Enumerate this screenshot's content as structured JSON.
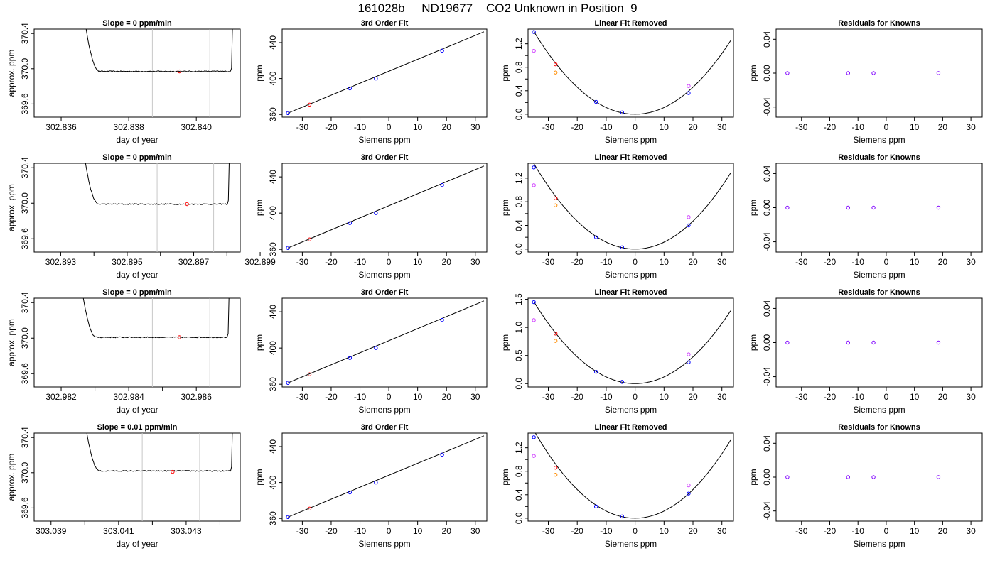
{
  "page_title": "161028b     ND19677    CO2 Unknown in Position  9",
  "colors": {
    "line": "#000000",
    "window": "#c8c8c8",
    "known": "#0000ff",
    "sample": "#ff0000",
    "ref_a": "#ff8c00",
    "ref_b": "#d040ff",
    "resid": "#7f00ff"
  },
  "chart_data": [
    {
      "type": "line",
      "row": 0,
      "panel": "trace",
      "title": "Slope =  0  ppm/min",
      "xlabel": "day of year",
      "ylabel": "approx. ppm",
      "xlim": [
        302.8352,
        302.8413
      ],
      "ylim": [
        369.45,
        370.45
      ],
      "xticks": [
        302.836,
        302.838,
        302.84
      ],
      "xtick_labels": [
        "302.836",
        "302.838",
        "302.840"
      ],
      "yticks": [
        369.6,
        370.0,
        370.4
      ],
      "ytick_labels": [
        "369.6",
        "370.0",
        "370.4"
      ],
      "trace": {
        "start": 302.8365,
        "end": 302.8411,
        "level": 369.97,
        "noise": 0.006
      },
      "window": [
        302.8387,
        302.8404
      ],
      "sample_point": {
        "x": 302.8395,
        "y": 369.97
      }
    },
    {
      "type": "line",
      "row": 0,
      "panel": "fit",
      "title": "3rd Order Fit",
      "xlabel": "Siemens ppm",
      "ylabel": "ppm",
      "xlim": [
        -37,
        34
      ],
      "ylim": [
        357,
        455
      ],
      "xticks": [
        -30,
        -20,
        -10,
        0,
        10,
        20,
        30
      ],
      "yticks": [
        360,
        400,
        440
      ],
      "fit_line": [
        [
          -35,
          361.5
        ],
        [
          33,
          452
        ]
      ],
      "known_points": [
        [
          -35,
          361.5
        ],
        [
          -13.5,
          389
        ],
        [
          -4.5,
          400
        ],
        [
          18.5,
          431
        ]
      ],
      "sample_points": [
        [
          -27.5,
          371
        ]
      ]
    },
    {
      "type": "line",
      "row": 0,
      "panel": "linear_removed",
      "title": "Linear Fit Removed",
      "xlabel": "Siemens ppm",
      "ylabel": "ppm",
      "xlim": [
        -37,
        34
      ],
      "ylim": [
        -0.05,
        1.45
      ],
      "xticks": [
        -30,
        -20,
        -10,
        0,
        10,
        20,
        30
      ],
      "yticks": [
        0.0,
        0.2,
        0.4,
        0.6,
        0.8,
        1.0,
        1.2
      ],
      "yticks_labeled": [
        0.0,
        0.4,
        0.8,
        1.2
      ],
      "curve": {
        "center": 0,
        "coef": 0.00115
      },
      "known_points": [
        [
          -35,
          1.4
        ],
        [
          -13.5,
          0.21
        ],
        [
          -4.5,
          0.03
        ],
        [
          18.5,
          0.36
        ]
      ],
      "sample_points": [
        [
          -27.5,
          0.85
        ]
      ],
      "ref_a_points": [
        [
          -27.5,
          0.71
        ]
      ],
      "ref_b_points": [
        [
          -35,
          1.08
        ],
        [
          18.5,
          0.48
        ]
      ]
    },
    {
      "type": "scatter",
      "row": 0,
      "panel": "resid",
      "title": "Residuals for Knowns",
      "xlabel": "Siemens ppm",
      "ylabel": "ppm",
      "xlim": [
        -39,
        34
      ],
      "ylim": [
        -0.052,
        0.052
      ],
      "xticks": [
        -30,
        -20,
        -10,
        0,
        10,
        20,
        30
      ],
      "yticks": [
        -0.04,
        0.0,
        0.04
      ],
      "ytick_labels": [
        "-0.04",
        "0.00",
        "0.04"
      ],
      "points": [
        [
          -35,
          0
        ],
        [
          -13.5,
          0
        ],
        [
          -4.5,
          0
        ],
        [
          18.5,
          0
        ]
      ]
    },
    {
      "type": "line",
      "row": 1,
      "panel": "trace",
      "title": "Slope =  0  ppm/min",
      "xlabel": "day of year",
      "ylabel": "approx. ppm",
      "xlim": [
        302.8922,
        302.8984
      ],
      "ylim": [
        369.45,
        370.45
      ],
      "xticks": [
        302.893,
        302.894,
        302.895,
        302.896,
        302.897,
        302.898,
        302.899
      ],
      "xtick_labels": [
        "302.893",
        "",
        "302.895",
        "",
        "302.897",
        "",
        "302.899"
      ],
      "yticks": [
        369.6,
        370.0,
        370.4
      ],
      "ytick_labels": [
        "369.6",
        "370.0",
        "370.4"
      ],
      "trace": {
        "start": 302.8935,
        "end": 302.8981,
        "level": 369.99,
        "noise": 0.006
      },
      "window": [
        302.8959,
        302.8976
      ],
      "sample_point": {
        "x": 302.8968,
        "y": 369.99
      }
    },
    {
      "type": "line",
      "row": 1,
      "panel": "fit",
      "title": "3rd Order Fit",
      "xlabel": "Siemens ppm",
      "ylabel": "ppm",
      "xlim": [
        -37,
        34
      ],
      "ylim": [
        357,
        455
      ],
      "xticks": [
        -30,
        -20,
        -10,
        0,
        10,
        20,
        30
      ],
      "yticks": [
        360,
        400,
        440
      ],
      "fit_line": [
        [
          -35,
          361.5
        ],
        [
          33,
          452
        ]
      ],
      "known_points": [
        [
          -35,
          361.5
        ],
        [
          -13.5,
          389
        ],
        [
          -4.5,
          400
        ],
        [
          18.5,
          431
        ]
      ],
      "sample_points": [
        [
          -27.5,
          371
        ]
      ]
    },
    {
      "type": "line",
      "row": 1,
      "panel": "linear_removed",
      "title": "Linear Fit Removed",
      "xlabel": "Siemens ppm",
      "ylabel": "ppm",
      "xlim": [
        -37,
        34
      ],
      "ylim": [
        -0.05,
        1.45
      ],
      "xticks": [
        -30,
        -20,
        -10,
        0,
        10,
        20,
        30
      ],
      "yticks": [
        0.0,
        0.2,
        0.4,
        0.6,
        0.8,
        1.0,
        1.2
      ],
      "yticks_labeled": [
        0.0,
        0.4,
        0.8,
        1.2
      ],
      "curve": {
        "center": 0,
        "coef": 0.00118
      },
      "known_points": [
        [
          -35,
          1.38
        ],
        [
          -13.5,
          0.2
        ],
        [
          -4.5,
          0.03
        ],
        [
          18.5,
          0.4
        ]
      ],
      "sample_points": [
        [
          -27.5,
          0.86
        ]
      ],
      "ref_a_points": [
        [
          -27.5,
          0.74
        ]
      ],
      "ref_b_points": [
        [
          -35,
          1.08
        ],
        [
          18.5,
          0.54
        ]
      ]
    },
    {
      "type": "scatter",
      "row": 1,
      "panel": "resid",
      "title": "Residuals for Knowns",
      "xlabel": "Siemens ppm",
      "ylabel": "ppm",
      "xlim": [
        -39,
        34
      ],
      "ylim": [
        -0.052,
        0.052
      ],
      "xticks": [
        -30,
        -20,
        -10,
        0,
        10,
        20,
        30
      ],
      "yticks": [
        -0.04,
        0.0,
        0.04
      ],
      "ytick_labels": [
        "-0.04",
        "0.00",
        "0.04"
      ],
      "points": [
        [
          -35,
          0
        ],
        [
          -13.5,
          0
        ],
        [
          -4.5,
          0
        ],
        [
          18.5,
          0
        ]
      ]
    },
    {
      "type": "line",
      "row": 2,
      "panel": "trace",
      "title": "Slope =  0  ppm/min",
      "xlabel": "day of year",
      "ylabel": "approx. ppm",
      "xlim": [
        302.9812,
        302.9873
      ],
      "ylim": [
        369.45,
        370.45
      ],
      "xticks": [
        302.982,
        302.983,
        302.984,
        302.985,
        302.986
      ],
      "xtick_labels": [
        "302.982",
        "",
        "302.984",
        "",
        "302.986"
      ],
      "yticks": [
        369.6,
        370.0,
        370.4
      ],
      "ytick_labels": [
        "369.6",
        "370.0",
        "370.4"
      ],
      "trace": {
        "start": 302.9824,
        "end": 302.987,
        "level": 370.01,
        "noise": 0.006
      },
      "window": [
        302.9847,
        302.9864
      ],
      "sample_point": {
        "x": 302.9855,
        "y": 370.01
      }
    },
    {
      "type": "line",
      "row": 2,
      "panel": "fit",
      "title": "3rd Order Fit",
      "xlabel": "Siemens ppm",
      "ylabel": "ppm",
      "xlim": [
        -37,
        34
      ],
      "ylim": [
        357,
        455
      ],
      "xticks": [
        -30,
        -20,
        -10,
        0,
        10,
        20,
        30
      ],
      "yticks": [
        360,
        400,
        440
      ],
      "fit_line": [
        [
          -35,
          361.5
        ],
        [
          33,
          452
        ]
      ],
      "known_points": [
        [
          -35,
          361.5
        ],
        [
          -13.5,
          389
        ],
        [
          -4.5,
          400
        ],
        [
          18.5,
          431
        ]
      ],
      "sample_points": [
        [
          -27.5,
          371
        ]
      ]
    },
    {
      "type": "line",
      "row": 2,
      "panel": "linear_removed",
      "title": "Linear Fit Removed",
      "xlabel": "Siemens ppm",
      "ylabel": "ppm",
      "xlim": [
        -37,
        34
      ],
      "ylim": [
        -0.06,
        1.52
      ],
      "xticks": [
        -30,
        -20,
        -10,
        0,
        10,
        20,
        30
      ],
      "yticks": [
        0.0,
        0.5,
        1.0,
        1.5
      ],
      "yticks_labeled": [
        0.0,
        0.5,
        1.0,
        1.5
      ],
      "curve": {
        "center": 0,
        "coef": 0.00119
      },
      "known_points": [
        [
          -35,
          1.45
        ],
        [
          -13.5,
          0.21
        ],
        [
          -4.5,
          0.03
        ],
        [
          18.5,
          0.38
        ]
      ],
      "sample_points": [
        [
          -27.5,
          0.89
        ]
      ],
      "ref_a_points": [
        [
          -27.5,
          0.76
        ]
      ],
      "ref_b_points": [
        [
          -35,
          1.13
        ],
        [
          18.5,
          0.52
        ]
      ]
    },
    {
      "type": "scatter",
      "row": 2,
      "panel": "resid",
      "title": "Residuals for Knowns",
      "xlabel": "Siemens ppm",
      "ylabel": "ppm",
      "xlim": [
        -39,
        34
      ],
      "ylim": [
        -0.052,
        0.052
      ],
      "xticks": [
        -30,
        -20,
        -10,
        0,
        10,
        20,
        30
      ],
      "yticks": [
        -0.04,
        0.0,
        0.04
      ],
      "ytick_labels": [
        "-0.04",
        "0.00",
        "0.04"
      ],
      "points": [
        [
          -35,
          0
        ],
        [
          -13.5,
          0
        ],
        [
          -4.5,
          0
        ],
        [
          18.5,
          0
        ]
      ]
    },
    {
      "type": "line",
      "row": 3,
      "panel": "trace",
      "title": "Slope =  0.01  ppm/min",
      "xlabel": "day of year",
      "ylabel": "approx. ppm",
      "xlim": [
        303.0385,
        303.0446
      ],
      "ylim": [
        369.45,
        370.45
      ],
      "xticks": [
        303.039,
        303.04,
        303.041,
        303.042,
        303.043,
        303.044
      ],
      "xtick_labels": [
        "303.039",
        "",
        "303.041",
        "",
        "303.043",
        ""
      ],
      "yticks": [
        369.6,
        370.0,
        370.4
      ],
      "ytick_labels": [
        "369.6",
        "370.0",
        "370.4"
      ],
      "trace": {
        "start": 303.0398,
        "end": 303.0444,
        "level": 370.02,
        "noise": 0.006
      },
      "window": [
        303.0417,
        303.0434
      ],
      "sample_point": {
        "x": 303.0426,
        "y": 370.01
      }
    },
    {
      "type": "line",
      "row": 3,
      "panel": "fit",
      "title": "3rd Order Fit",
      "xlabel": "Siemens ppm",
      "ylabel": "ppm",
      "xlim": [
        -37,
        34
      ],
      "ylim": [
        357,
        455
      ],
      "xticks": [
        -30,
        -20,
        -10,
        0,
        10,
        20,
        30
      ],
      "yticks": [
        360,
        400,
        440
      ],
      "fit_line": [
        [
          -35,
          361.5
        ],
        [
          33,
          452
        ]
      ],
      "known_points": [
        [
          -35,
          361.5
        ],
        [
          -13.5,
          389
        ],
        [
          -4.5,
          400
        ],
        [
          18.5,
          431
        ]
      ],
      "sample_points": [
        [
          -27.5,
          371
        ]
      ]
    },
    {
      "type": "line",
      "row": 3,
      "panel": "linear_removed",
      "title": "Linear Fit Removed",
      "xlabel": "Siemens ppm",
      "ylabel": "ppm",
      "xlim": [
        -37,
        34
      ],
      "ylim": [
        -0.05,
        1.45
      ],
      "xticks": [
        -30,
        -20,
        -10,
        0,
        10,
        20,
        30
      ],
      "yticks": [
        0.0,
        0.2,
        0.4,
        0.6,
        0.8,
        1.0,
        1.2
      ],
      "yticks_labeled": [
        0.0,
        0.4,
        0.8,
        1.2
      ],
      "curve": {
        "center": 0,
        "coef": 0.00122
      },
      "known_points": [
        [
          -35,
          1.38
        ],
        [
          -13.5,
          0.2
        ],
        [
          -4.5,
          0.03
        ],
        [
          18.5,
          0.42
        ]
      ],
      "sample_points": [
        [
          -27.5,
          0.86
        ]
      ],
      "ref_a_points": [
        [
          -27.5,
          0.74
        ]
      ],
      "ref_b_points": [
        [
          -35,
          1.06
        ],
        [
          18.5,
          0.56
        ]
      ]
    },
    {
      "type": "scatter",
      "row": 3,
      "panel": "resid",
      "title": "Residuals for Knowns",
      "xlabel": "Siemens ppm",
      "ylabel": "ppm",
      "xlim": [
        -39,
        34
      ],
      "ylim": [
        -0.052,
        0.052
      ],
      "xticks": [
        -30,
        -20,
        -10,
        0,
        10,
        20,
        30
      ],
      "yticks": [
        -0.04,
        0.0,
        0.04
      ],
      "ytick_labels": [
        "-0.04",
        "0.00",
        "0.04"
      ],
      "points": [
        [
          -35,
          0
        ],
        [
          -13.5,
          0
        ],
        [
          -4.5,
          0
        ],
        [
          18.5,
          0
        ]
      ]
    }
  ]
}
